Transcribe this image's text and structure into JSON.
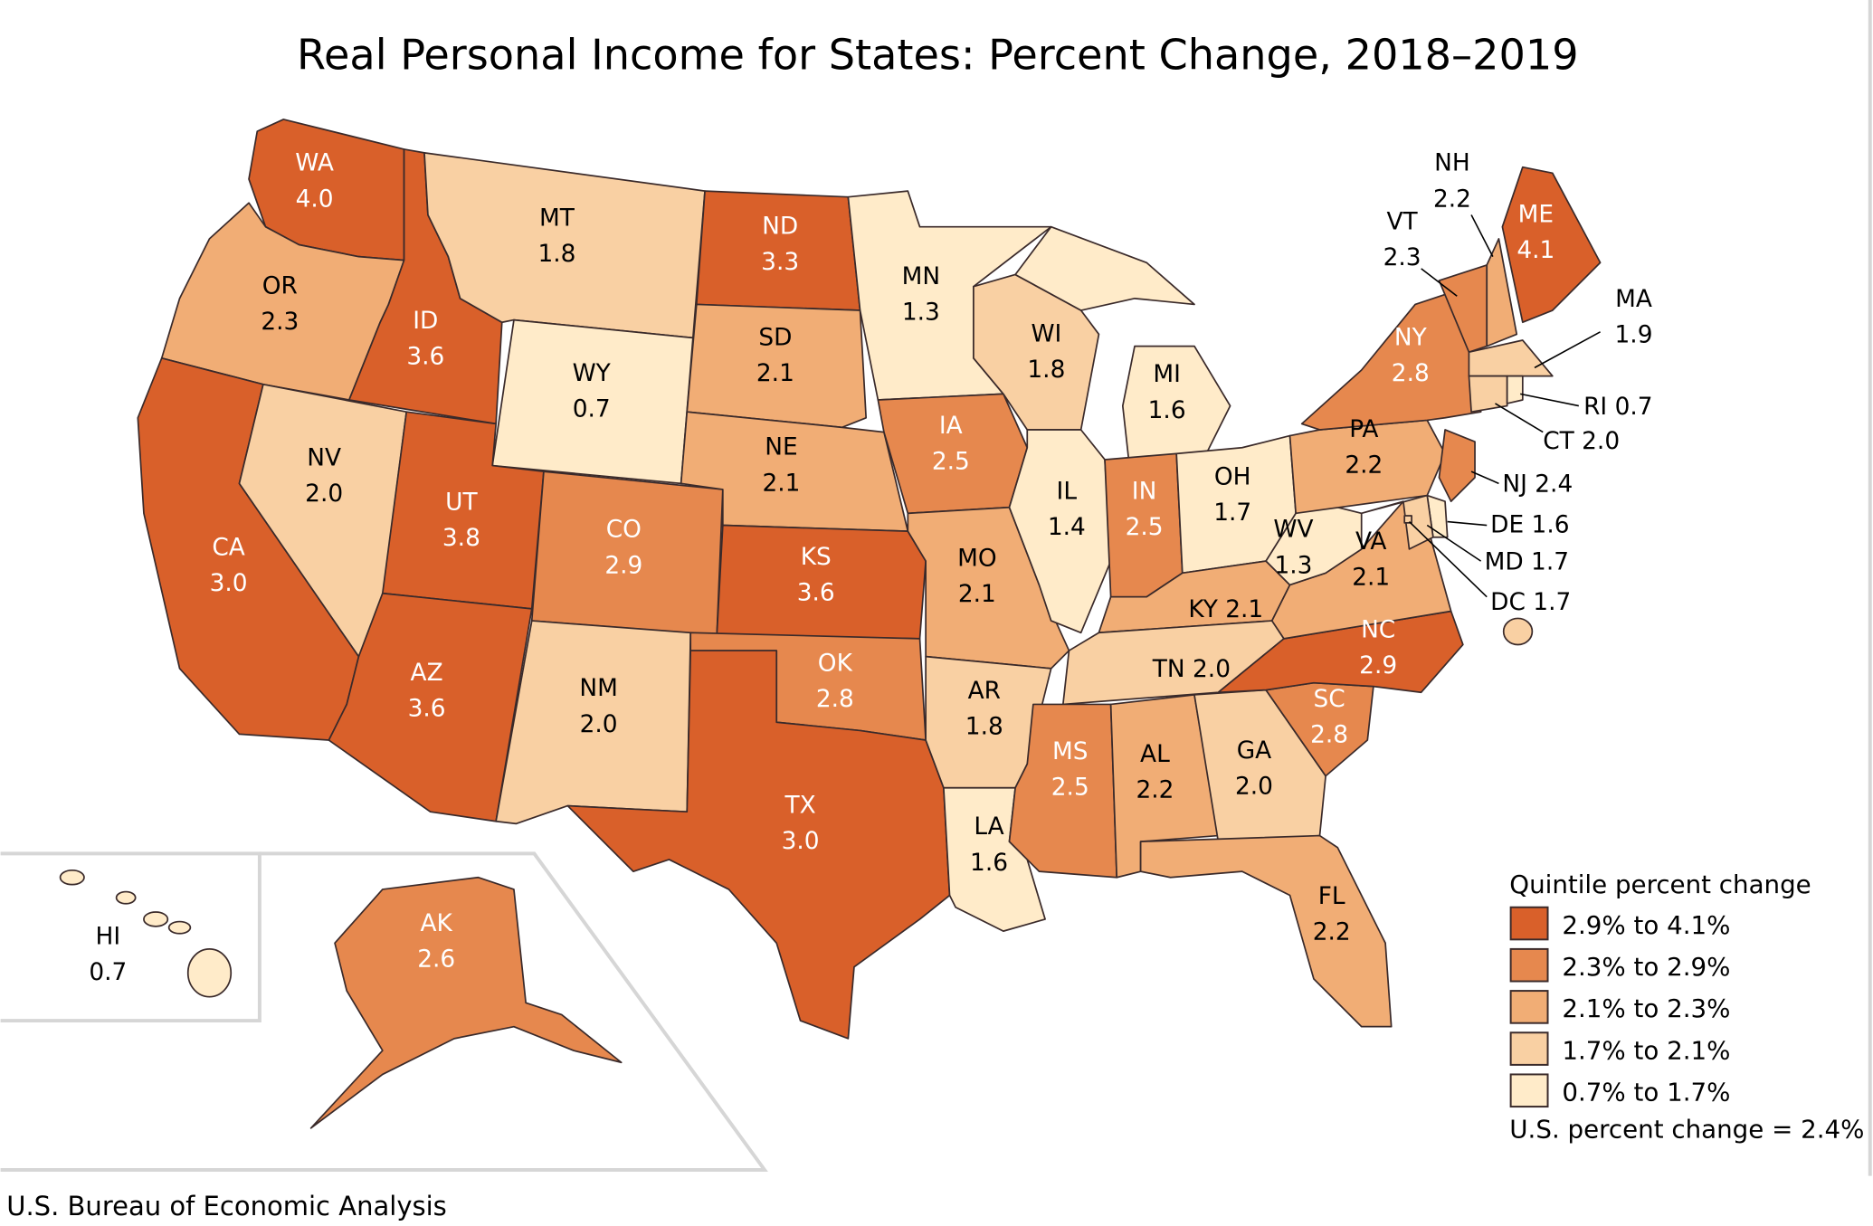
{
  "title": "Real Personal Income for States: Percent Change, 2018–2019",
  "credit": "U.S. Bureau of Economic Analysis",
  "legend": {
    "title": "Quintile percent change",
    "classes": [
      {
        "label": "2.9% to 4.1%",
        "color": "#D9602A"
      },
      {
        "label": "2.3% to 2.9%",
        "color": "#E6884E"
      },
      {
        "label": "2.1% to 2.3%",
        "color": "#F1AD75"
      },
      {
        "label": "1.7% to 2.1%",
        "color": "#F9D0A3"
      },
      {
        "label": "0.7% to 1.7%",
        "color": "#FFEBC9"
      }
    ],
    "us_change": "U.S. percent change = 2.4%"
  },
  "states": [
    {
      "abbr": "WA",
      "value": "4.0",
      "class": 0
    },
    {
      "abbr": "OR",
      "value": "2.3",
      "class": 2
    },
    {
      "abbr": "CA",
      "value": "3.0",
      "class": 0
    },
    {
      "abbr": "ID",
      "value": "3.6",
      "class": 0
    },
    {
      "abbr": "NV",
      "value": "2.0",
      "class": 3
    },
    {
      "abbr": "MT",
      "value": "1.8",
      "class": 3
    },
    {
      "abbr": "WY",
      "value": "0.7",
      "class": 4
    },
    {
      "abbr": "UT",
      "value": "3.8",
      "class": 0
    },
    {
      "abbr": "AZ",
      "value": "3.6",
      "class": 0
    },
    {
      "abbr": "CO",
      "value": "2.9",
      "class": 1
    },
    {
      "abbr": "NM",
      "value": "2.0",
      "class": 3
    },
    {
      "abbr": "ND",
      "value": "3.3",
      "class": 0
    },
    {
      "abbr": "SD",
      "value": "2.1",
      "class": 2
    },
    {
      "abbr": "NE",
      "value": "2.1",
      "class": 2
    },
    {
      "abbr": "KS",
      "value": "3.6",
      "class": 0
    },
    {
      "abbr": "OK",
      "value": "2.8",
      "class": 1
    },
    {
      "abbr": "TX",
      "value": "3.0",
      "class": 0
    },
    {
      "abbr": "MN",
      "value": "1.3",
      "class": 4
    },
    {
      "abbr": "IA",
      "value": "2.5",
      "class": 1
    },
    {
      "abbr": "MO",
      "value": "2.1",
      "class": 2
    },
    {
      "abbr": "AR",
      "value": "1.8",
      "class": 3
    },
    {
      "abbr": "LA",
      "value": "1.6",
      "class": 4
    },
    {
      "abbr": "WI",
      "value": "1.8",
      "class": 3
    },
    {
      "abbr": "IL",
      "value": "1.4",
      "class": 4
    },
    {
      "abbr": "MI",
      "value": "1.6",
      "class": 4
    },
    {
      "abbr": "IN",
      "value": "2.5",
      "class": 1
    },
    {
      "abbr": "OH",
      "value": "1.7",
      "class": 4
    },
    {
      "abbr": "KY",
      "value": "2.1",
      "class": 2
    },
    {
      "abbr": "TN",
      "value": "2.0",
      "class": 3
    },
    {
      "abbr": "MS",
      "value": "2.5",
      "class": 1
    },
    {
      "abbr": "AL",
      "value": "2.2",
      "class": 2
    },
    {
      "abbr": "GA",
      "value": "2.0",
      "class": 3
    },
    {
      "abbr": "FL",
      "value": "2.2",
      "class": 2
    },
    {
      "abbr": "SC",
      "value": "2.8",
      "class": 1
    },
    {
      "abbr": "NC",
      "value": "2.9",
      "class": 0
    },
    {
      "abbr": "VA",
      "value": "2.1",
      "class": 2
    },
    {
      "abbr": "WV",
      "value": "1.3",
      "class": 4
    },
    {
      "abbr": "PA",
      "value": "2.2",
      "class": 2
    },
    {
      "abbr": "NY",
      "value": "2.8",
      "class": 1
    },
    {
      "abbr": "NJ",
      "value": "2.4",
      "class": 1
    },
    {
      "abbr": "DE",
      "value": "1.6",
      "class": 4
    },
    {
      "abbr": "MD",
      "value": "1.7",
      "class": 3
    },
    {
      "abbr": "DC",
      "value": "1.7",
      "class": 3
    },
    {
      "abbr": "VT",
      "value": "2.3",
      "class": 1
    },
    {
      "abbr": "NH",
      "value": "2.2",
      "class": 2
    },
    {
      "abbr": "ME",
      "value": "4.1",
      "class": 0
    },
    {
      "abbr": "MA",
      "value": "1.9",
      "class": 3
    },
    {
      "abbr": "CT",
      "value": "2.0",
      "class": 3
    },
    {
      "abbr": "RI",
      "value": "0.7",
      "class": 4
    },
    {
      "abbr": "AK",
      "value": "2.6",
      "class": 1
    },
    {
      "abbr": "HI",
      "value": "0.7",
      "class": 4
    }
  ]
}
